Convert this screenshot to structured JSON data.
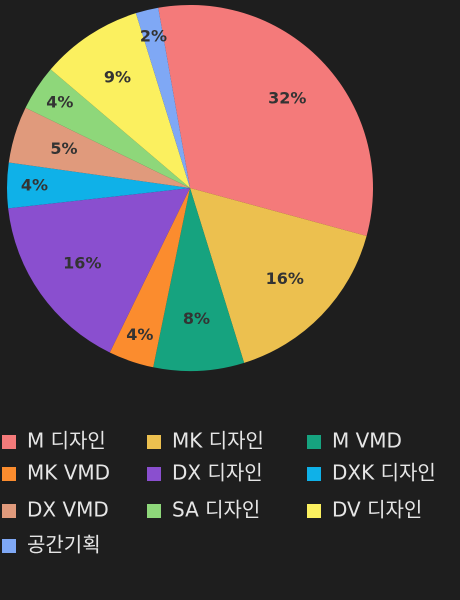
{
  "chart_data": {
    "type": "pie",
    "categories": [
      "M 디자인",
      "MK 디자인",
      "M VMD",
      "MK VMD",
      "DX 디자인",
      "DXK 디자인",
      "DX VMD",
      "SA 디자인",
      "DV 디자인",
      "공간기획"
    ],
    "values": [
      32,
      16,
      8,
      4,
      16,
      4,
      5,
      4,
      9,
      2
    ],
    "value_labels": [
      "32%",
      "16%",
      "8%",
      "4%",
      "16%",
      "4%",
      "5%",
      "4%",
      "9%",
      "2%"
    ],
    "colors": [
      "#f47a7a",
      "#ecc04f",
      "#16a37f",
      "#fb8c2e",
      "#8a4fcf",
      "#0fb1e8",
      "#e09a7c",
      "#8ed77a",
      "#fbf05f",
      "#7fa8f5"
    ],
    "legend": "bottom"
  }
}
